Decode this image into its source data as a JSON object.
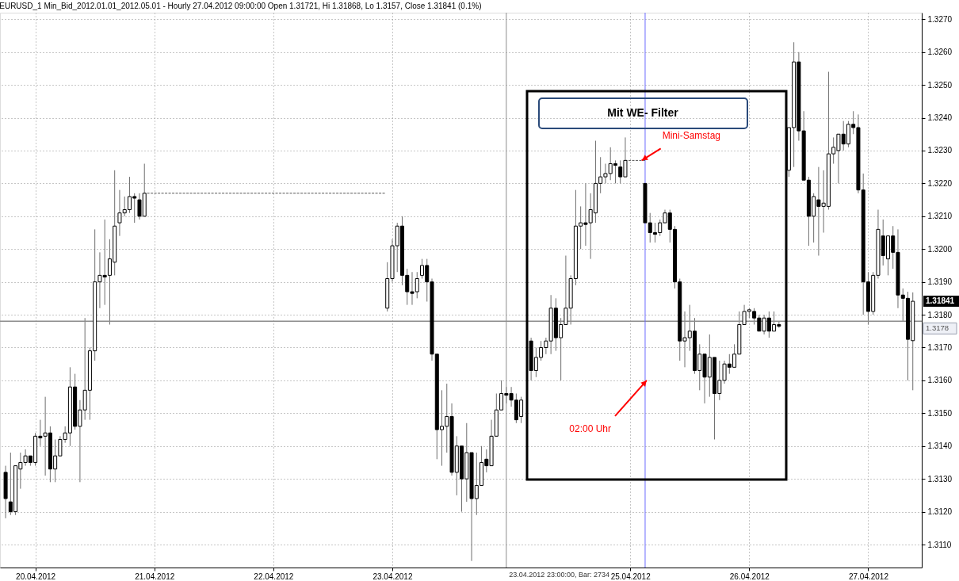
{
  "chart_data": {
    "type": "candlestick",
    "title": "EURUSD_1 Min_Bid_2012.01.01_2012.05.01 - Hourly 27.04.2012 09:00:00 Open 1.31721, Hi 1.31868, Lo 1.3157, Close 1.31841 (0.1%)",
    "series": [
      {
        "type": "candlestick",
        "color": "#6e6e6e",
        "x": [
          "2012-04-19T18:00",
          "2012-04-19T19:00",
          "2012-04-19T20:00",
          "2012-04-19T21:00",
          "2012-04-19T22:00",
          "2012-04-19T23:00",
          "2012-04-20T00:00",
          "2012-04-20T01:00",
          "2012-04-20T02:00",
          "2012-04-20T03:00",
          "2012-04-20T04:00",
          "2012-04-20T05:00",
          "2012-04-20T06:00",
          "2012-04-20T07:00",
          "2012-04-20T08:00",
          "2012-04-20T09:00",
          "2012-04-20T10:00",
          "2012-04-20T11:00",
          "2012-04-20T12:00",
          "2012-04-20T13:00",
          "2012-04-20T14:00",
          "2012-04-20T15:00",
          "2012-04-20T16:00",
          "2012-04-20T17:00",
          "2012-04-20T18:00",
          "2012-04-20T19:00",
          "2012-04-20T20:00",
          "2012-04-20T21:00",
          "2012-04-20T22:00",
          "2012-04-22T23:00",
          "2012-04-23T00:00",
          "2012-04-23T01:00",
          "2012-04-23T02:00",
          "2012-04-23T03:00",
          "2012-04-23T04:00",
          "2012-04-23T05:00",
          "2012-04-23T06:00",
          "2012-04-23T07:00",
          "2012-04-23T08:00",
          "2012-04-23T09:00",
          "2012-04-23T10:00",
          "2012-04-23T11:00",
          "2012-04-23T12:00",
          "2012-04-23T13:00",
          "2012-04-23T14:00",
          "2012-04-23T15:00",
          "2012-04-23T16:00",
          "2012-04-23T17:00",
          "2012-04-23T18:00",
          "2012-04-23T19:00",
          "2012-04-23T20:00",
          "2012-04-23T21:00",
          "2012-04-23T22:00",
          "2012-04-23T23:00",
          "2012-04-24T00:00",
          "2012-04-24T01:00",
          "2012-04-24T02:00",
          "2012-04-24T04:00",
          "2012-04-24T05:00",
          "2012-04-24T06:00",
          "2012-04-24T07:00",
          "2012-04-24T08:00",
          "2012-04-24T09:00",
          "2012-04-24T10:00",
          "2012-04-24T11:00",
          "2012-04-24T12:00",
          "2012-04-24T13:00",
          "2012-04-24T14:00",
          "2012-04-24T15:00",
          "2012-04-24T16:00",
          "2012-04-24T17:00",
          "2012-04-24T18:00",
          "2012-04-24T19:00",
          "2012-04-24T20:00",
          "2012-04-24T21:00",
          "2012-04-24T22:00",
          "2012-04-24T23:00",
          "2012-04-25T03:00",
          "2012-04-25T04:00",
          "2012-04-25T05:00",
          "2012-04-25T06:00",
          "2012-04-25T07:00",
          "2012-04-25T08:00",
          "2012-04-25T09:00",
          "2012-04-25T10:00",
          "2012-04-25T11:00",
          "2012-04-25T12:00",
          "2012-04-25T13:00",
          "2012-04-25T14:00",
          "2012-04-25T15:00",
          "2012-04-25T16:00",
          "2012-04-25T17:00",
          "2012-04-25T18:00",
          "2012-04-25T19:00",
          "2012-04-25T20:00",
          "2012-04-25T21:00",
          "2012-04-25T22:00",
          "2012-04-25T23:00",
          "2012-04-26T00:00",
          "2012-04-26T01:00",
          "2012-04-26T02:00",
          "2012-04-26T03:00",
          "2012-04-26T04:00",
          "2012-04-26T05:00",
          "2012-04-26T06:00",
          "2012-04-26T08:00",
          "2012-04-26T09:00",
          "2012-04-26T10:00",
          "2012-04-26T11:00",
          "2012-04-26T12:00",
          "2012-04-26T13:00",
          "2012-04-26T14:00",
          "2012-04-26T15:00",
          "2012-04-26T16:00",
          "2012-04-26T17:00",
          "2012-04-26T18:00",
          "2012-04-26T19:00",
          "2012-04-26T20:00",
          "2012-04-26T21:00",
          "2012-04-26T22:00",
          "2012-04-26T23:00",
          "2012-04-27T00:00",
          "2012-04-27T01:00",
          "2012-04-27T02:00",
          "2012-04-27T03:00",
          "2012-04-27T04:00",
          "2012-04-27T05:00",
          "2012-04-27T06:00",
          "2012-04-27T07:00",
          "2012-04-27T08:00",
          "2012-04-27T09:00"
        ],
        "ohlc": [
          [
            1.3132,
            1.3134,
            1.3118,
            1.3124
          ],
          [
            1.3123,
            1.3138,
            1.3119,
            1.312
          ],
          [
            1.312,
            1.3134,
            1.3119,
            1.3134
          ],
          [
            1.3133,
            1.3138,
            1.3127,
            1.3135
          ],
          [
            1.3135,
            1.3139,
            1.3134,
            1.3137
          ],
          [
            1.3137,
            1.3137,
            1.3134,
            1.3135
          ],
          [
            1.3135,
            1.3144,
            1.3134,
            1.3143
          ],
          [
            1.3143,
            1.3148,
            1.314,
            1.31425
          ],
          [
            1.3143,
            1.3155,
            1.3131,
            1.3144
          ],
          [
            1.3144,
            1.3146,
            1.3129,
            1.3133
          ],
          [
            1.3133,
            1.3142,
            1.3129,
            1.3137
          ],
          [
            1.3137,
            1.3143,
            1.3137,
            1.3142
          ],
          [
            1.3142,
            1.3146,
            1.3141,
            1.3144
          ],
          [
            1.3144,
            1.3164,
            1.314,
            1.3158
          ],
          [
            1.3158,
            1.3162,
            1.3145,
            1.3146
          ],
          [
            1.3146,
            1.3154,
            1.3129,
            1.3151
          ],
          [
            1.3151,
            1.3179,
            1.3148,
            1.3157
          ],
          [
            1.3157,
            1.317,
            1.3148,
            1.3169
          ],
          [
            1.3169,
            1.3206,
            1.3166,
            1.319
          ],
          [
            1.319,
            1.3199,
            1.3182,
            1.3192
          ],
          [
            1.3192,
            1.3209,
            1.3183,
            1.31915
          ],
          [
            1.3192,
            1.3203,
            1.3177,
            1.3197
          ],
          [
            1.3196,
            1.3224,
            1.3192,
            1.3207
          ],
          [
            1.3208,
            1.3218,
            1.3204,
            1.3211
          ],
          [
            1.3211,
            1.3216,
            1.321,
            1.3212
          ],
          [
            1.3212,
            1.3222,
            1.3211,
            1.3216
          ],
          [
            1.3216,
            1.3217,
            1.3208,
            1.32155
          ],
          [
            1.3215,
            1.3217,
            1.3209,
            1.321
          ],
          [
            1.321,
            1.3226,
            1.321,
            1.3217
          ],
          [
            1.3182,
            1.3196,
            1.3181,
            1.3191
          ],
          [
            1.3191,
            1.3203,
            1.319,
            1.3201
          ],
          [
            1.3201,
            1.3208,
            1.3193,
            1.3207
          ],
          [
            1.3207,
            1.321,
            1.3189,
            1.3192
          ],
          [
            1.3192,
            1.3194,
            1.3183,
            1.3187
          ],
          [
            1.3187,
            1.3193,
            1.3183,
            1.31865
          ],
          [
            1.3187,
            1.3193,
            1.3185,
            1.3191
          ],
          [
            1.3192,
            1.3197,
            1.3191,
            1.3195
          ],
          [
            1.3195,
            1.3197,
            1.3184,
            1.319
          ],
          [
            1.319,
            1.3191,
            1.3166,
            1.3168
          ],
          [
            1.3168,
            1.3168,
            1.3136,
            1.3145
          ],
          [
            1.3145,
            1.3157,
            1.3134,
            1.3146
          ],
          [
            1.3146,
            1.3159,
            1.3138,
            1.3149
          ],
          [
            1.3149,
            1.3153,
            1.3131,
            1.3132
          ],
          [
            1.3132,
            1.3143,
            1.3125,
            1.314
          ],
          [
            1.314,
            1.314,
            1.312,
            1.313
          ],
          [
            1.313,
            1.3147,
            1.3123,
            1.3138
          ],
          [
            1.3138,
            1.3138,
            1.3105,
            1.3124
          ],
          [
            1.3124,
            1.3138,
            1.3119,
            1.3128
          ],
          [
            1.3128,
            1.314,
            1.3128,
            1.3135
          ],
          [
            1.3136,
            1.3139,
            1.3132,
            1.3134
          ],
          [
            1.3134,
            1.3148,
            1.3134,
            1.3143
          ],
          [
            1.3143,
            1.3156,
            1.3143,
            1.3151
          ],
          [
            1.3151,
            1.316,
            1.3151,
            1.3156
          ],
          [
            1.3156,
            1.3158,
            1.3153,
            1.31555
          ],
          [
            1.3156,
            1.3158,
            1.3152,
            1.3154
          ],
          [
            1.3154,
            1.3156,
            1.3147,
            1.3148
          ],
          [
            1.3149,
            1.3155,
            1.3147,
            1.3154
          ],
          [
            1.3172,
            1.3173,
            1.316,
            1.3163
          ],
          [
            1.3163,
            1.317,
            1.3161,
            1.3167
          ],
          [
            1.3167,
            1.3172,
            1.3166,
            1.317
          ],
          [
            1.317,
            1.3173,
            1.3168,
            1.3172
          ],
          [
            1.3172,
            1.3186,
            1.3168,
            1.3182
          ],
          [
            1.3182,
            1.3185,
            1.3169,
            1.3173
          ],
          [
            1.3173,
            1.3179,
            1.316,
            1.3177
          ],
          [
            1.3177,
            1.3198,
            1.3177,
            1.3182
          ],
          [
            1.3182,
            1.3192,
            1.3177,
            1.3191
          ],
          [
            1.3191,
            1.3218,
            1.3189,
            1.3207
          ],
          [
            1.3207,
            1.3213,
            1.32,
            1.3208
          ],
          [
            1.3208,
            1.322,
            1.3201,
            1.32075
          ],
          [
            1.3208,
            1.3217,
            1.3197,
            1.3212
          ],
          [
            1.3211,
            1.3233,
            1.3208,
            1.322
          ],
          [
            1.322,
            1.3228,
            1.3217,
            1.3222
          ],
          [
            1.3222,
            1.3226,
            1.322,
            1.3223
          ],
          [
            1.3223,
            1.3231,
            1.3221,
            1.3226
          ],
          [
            1.3226,
            1.3227,
            1.322,
            1.32255
          ],
          [
            1.3225,
            1.3227,
            1.322,
            1.3222
          ],
          [
            1.3222,
            1.3234,
            1.3222,
            1.3227
          ],
          [
            1.322,
            1.322,
            1.3208,
            1.3208
          ],
          [
            1.3208,
            1.3211,
            1.3202,
            1.3205
          ],
          [
            1.3205,
            1.3208,
            1.3202,
            1.32045
          ],
          [
            1.3205,
            1.3209,
            1.3204,
            1.3208
          ],
          [
            1.3208,
            1.3212,
            1.3208,
            1.3211
          ],
          [
            1.3211,
            1.3212,
            1.3202,
            1.3206
          ],
          [
            1.3206,
            1.3207,
            1.3188,
            1.319
          ],
          [
            1.319,
            1.3191,
            1.3166,
            1.3172
          ],
          [
            1.3172,
            1.3181,
            1.3164,
            1.3173
          ],
          [
            1.3173,
            1.3183,
            1.3169,
            1.3175
          ],
          [
            1.3175,
            1.3179,
            1.3162,
            1.3163
          ],
          [
            1.3163,
            1.3171,
            1.3157,
            1.3168
          ],
          [
            1.3168,
            1.3168,
            1.3153,
            1.3161
          ],
          [
            1.3161,
            1.3174,
            1.3155,
            1.3167
          ],
          [
            1.3167,
            1.3167,
            1.3142,
            1.3156
          ],
          [
            1.3156,
            1.3166,
            1.3154,
            1.316
          ],
          [
            1.316,
            1.3166,
            1.3159,
            1.3165
          ],
          [
            1.3165,
            1.3168,
            1.3162,
            1.3164
          ],
          [
            1.3164,
            1.3171,
            1.3164,
            1.3168
          ],
          [
            1.3168,
            1.3181,
            1.3168,
            1.3177
          ],
          [
            1.3177,
            1.3183,
            1.3177,
            1.3181
          ],
          [
            1.3181,
            1.3182,
            1.3179,
            1.31815
          ],
          [
            1.3181,
            1.3182,
            1.3177,
            1.3179
          ],
          [
            1.3179,
            1.318,
            1.3175,
            1.3175
          ],
          [
            1.3175,
            1.318,
            1.3174,
            1.3179
          ],
          [
            1.3179,
            1.3181,
            1.3173,
            1.3175
          ],
          [
            1.3175,
            1.3181,
            1.3175,
            1.3177
          ],
          [
            1.3177,
            1.3178,
            1.3176,
            1.31765
          ],
          [
            1.3224,
            1.3237,
            1.3222,
            1.3237
          ],
          [
            1.3237,
            1.3263,
            1.3225,
            1.3257
          ],
          [
            1.3257,
            1.326,
            1.3233,
            1.3236
          ],
          [
            1.3236,
            1.3242,
            1.3221,
            1.3221
          ],
          [
            1.3221,
            1.3222,
            1.3201,
            1.321
          ],
          [
            1.321,
            1.3217,
            1.3202,
            1.3216
          ],
          [
            1.3215,
            1.3225,
            1.3198,
            1.3213
          ],
          [
            1.3213,
            1.3224,
            1.3205,
            1.3214
          ],
          [
            1.3213,
            1.3254,
            1.3212,
            1.3229
          ],
          [
            1.3229,
            1.3234,
            1.3226,
            1.3231
          ],
          [
            1.323,
            1.3235,
            1.322,
            1.3235
          ],
          [
            1.3235,
            1.3239,
            1.323,
            1.3232
          ],
          [
            1.3232,
            1.3239,
            1.3231,
            1.3238
          ],
          [
            1.3238,
            1.3242,
            1.3235,
            1.3237
          ],
          [
            1.3237,
            1.3241,
            1.3217,
            1.3218
          ],
          [
            1.3218,
            1.3223,
            1.318,
            1.319
          ],
          [
            1.319,
            1.3193,
            1.3177,
            1.3181
          ],
          [
            1.3181,
            1.3193,
            1.318,
            1.3192
          ],
          [
            1.3192,
            1.3212,
            1.3191,
            1.3206
          ],
          [
            1.3204,
            1.3209,
            1.3195,
            1.3198
          ],
          [
            1.3197,
            1.3204,
            1.3192,
            1.3204
          ],
          [
            1.3204,
            1.3207,
            1.3194,
            1.3199
          ],
          [
            1.3199,
            1.3206,
            1.3182,
            1.3186
          ],
          [
            1.3186,
            1.3188,
            1.3178,
            1.3185
          ],
          [
            1.3185,
            1.3187,
            1.316,
            1.31725
          ],
          [
            1.31721,
            1.31868,
            1.3157,
            1.31841
          ]
        ],
        "colors": [
          "#000000",
          "#000000",
          "#ffffff",
          "#ffffff",
          "#ffffff",
          "#000000",
          "#ffffff",
          "#000000",
          "#ffffff",
          "#000000",
          "#ffffff",
          "#ffffff",
          "#ffffff",
          "#ffffff",
          "#000000",
          "#ffffff",
          "#ffffff",
          "#ffffff",
          "#ffffff",
          "#ffffff",
          "#000000",
          "#ffffff",
          "#ffffff",
          "#ffffff",
          "#ffffff",
          "#ffffff",
          "#000000",
          "#000000",
          "#ffffff",
          "#ffffff",
          "#ffffff",
          "#ffffff",
          "#000000",
          "#000000",
          "#000000",
          "#ffffff",
          "#ffffff",
          "#000000",
          "#000000",
          "#000000",
          "#ffffff",
          "#ffffff",
          "#000000",
          "#ffffff",
          "#000000",
          "#ffffff",
          "#000000",
          "#ffffff",
          "#ffffff",
          "#000000",
          "#ffffff",
          "#ffffff",
          "#ffffff",
          "#000000",
          "#000000",
          "#000000",
          "#ffffff",
          "#000000",
          "#ffffff",
          "#ffffff",
          "#ffffff",
          "#ffffff",
          "#000000",
          "#ffffff",
          "#ffffff",
          "#ffffff",
          "#ffffff",
          "#ffffff",
          "#000000",
          "#ffffff",
          "#ffffff",
          "#ffffff",
          "#ffffff",
          "#ffffff",
          "#000000",
          "#000000",
          "#ffffff",
          "#000000",
          "#000000",
          "#000000",
          "#ffffff",
          "#ffffff",
          "#000000",
          "#000000",
          "#000000",
          "#ffffff",
          "#ffffff",
          "#000000",
          "#ffffff",
          "#000000",
          "#ffffff",
          "#000000",
          "#ffffff",
          "#ffffff",
          "#000000",
          "#ffffff",
          "#ffffff",
          "#ffffff",
          "#ffffff",
          "#000000",
          "#000000",
          "#ffffff",
          "#000000",
          "#ffffff",
          "#000000",
          "#ffffff",
          "#ffffff",
          "#000000",
          "#000000",
          "#000000",
          "#ffffff",
          "#000000",
          "#ffffff",
          "#ffffff",
          "#ffffff",
          "#ffffff",
          "#000000",
          "#ffffff",
          "#000000",
          "#000000",
          "#000000",
          "#000000",
          "#ffffff",
          "#ffffff",
          "#000000",
          "#ffffff",
          "#000000",
          "#000000",
          "#000000",
          "#000000",
          "#ffffff"
        ]
      },
      {
        "type": "line",
        "color": "#555555",
        "line_style": "dashed",
        "x": [
          "2012-04-20T22:00",
          "2012-04-22T22:30"
        ],
        "values": [
          1.3217,
          1.3217
        ]
      },
      {
        "type": "line",
        "color": "#555555",
        "line_style": "dashed",
        "x": [
          "2012-04-24T23:00",
          "2012-04-25T03:00"
        ],
        "values": [
          1.3227,
          1.3227
        ]
      }
    ],
    "xlim": [
      "2012-04-19T17:40",
      "2012-04-27T10:00"
    ],
    "xticks": [
      {
        "value": "2012-04-20",
        "label": "20.04.2012"
      },
      {
        "value": "2012-04-21",
        "label": "21.04.2012"
      },
      {
        "value": "2012-04-22",
        "label": "22.04.2012"
      },
      {
        "value": "2012-04-23",
        "label": "23.04.2012"
      },
      {
        "value": "2012-04-25",
        "label": "25.04.2012"
      },
      {
        "value": "2012-04-26",
        "label": "26.04.2012"
      },
      {
        "value": "2012-04-27",
        "label": "27.04.2012"
      }
    ],
    "ylim": [
      1.3103,
      1.3272
    ],
    "yticks": [
      {
        "value": 1.311,
        "label": "1.3110"
      },
      {
        "value": 1.312,
        "label": "1.3120"
      },
      {
        "value": 1.313,
        "label": "1.3130"
      },
      {
        "value": 1.314,
        "label": "1.3140"
      },
      {
        "value": 1.315,
        "label": "1.3150"
      },
      {
        "value": 1.316,
        "label": "1.3160"
      },
      {
        "value": 1.317,
        "label": "1.3170"
      },
      {
        "value": 1.318,
        "label": "1.3180"
      },
      {
        "value": 1.319,
        "label": "1.3190"
      },
      {
        "value": 1.32,
        "label": "1.3200"
      },
      {
        "value": 1.321,
        "label": "1.3210"
      },
      {
        "value": 1.322,
        "label": "1.3220"
      },
      {
        "value": 1.323,
        "label": "1.3230"
      },
      {
        "value": 1.324,
        "label": "1.3240"
      },
      {
        "value": 1.325,
        "label": "1.3250"
      },
      {
        "value": 1.326,
        "label": "1.3260"
      },
      {
        "value": 1.327,
        "label": "1.3270"
      }
    ],
    "grid": true,
    "ref_lines": [
      {
        "axis": "y",
        "value": 1.3178,
        "label": "1.3178",
        "color": "#8c8c8c"
      },
      {
        "axis": "x",
        "value": "2012-04-23T23:00",
        "label": "23.04.2012 23:00:00, Bar: 2734",
        "color": "#8c8c8c"
      },
      {
        "axis": "x",
        "value": "2012-04-25T03:00",
        "color": "#6a6aff"
      }
    ],
    "annotations": [
      "Mit WE- Filter",
      {
        "text": "Mini-Samstag",
        "x": "2012-04-25T02:00",
        "y": 1.3227
      },
      {
        "text": "02:00 Uhr",
        "x": "2012-04-25T03:00",
        "y": 1.316
      },
      {
        "text": "1.31841",
        "x": "2012-04-27T09:00",
        "y": 1.31841
      }
    ]
  }
}
